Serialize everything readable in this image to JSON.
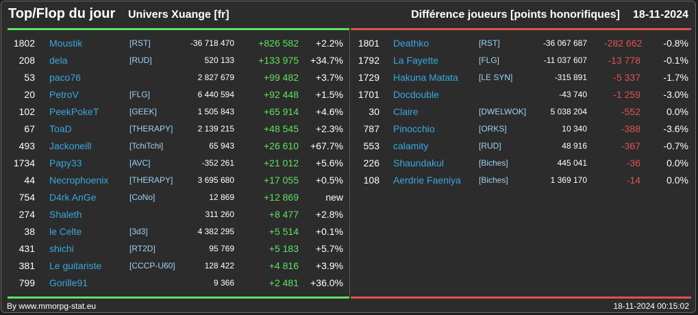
{
  "header": {
    "title": "Top/Flop du jour",
    "universe": "Univers Xuange [fr]",
    "metric": "Différence joueurs [points honorifiques]",
    "date": "18-11-2024"
  },
  "colors": {
    "positive": "#5fe25f",
    "negative": "#e0524d",
    "name": "#39a8e0"
  },
  "top": [
    {
      "rank": "1802",
      "name": "Moustik",
      "guild": "[RST]",
      "total": "-36 718 470",
      "diff": "+826 582",
      "pct": "+2.2%"
    },
    {
      "rank": "208",
      "name": "dela",
      "guild": "[RUD]",
      "total": "520 133",
      "diff": "+133 975",
      "pct": "+34.7%"
    },
    {
      "rank": "53",
      "name": "paco76",
      "guild": "",
      "total": "2 827 679",
      "diff": "+99 482",
      "pct": "+3.7%"
    },
    {
      "rank": "20",
      "name": "PetroV",
      "guild": "[FLG]",
      "total": "6 440 594",
      "diff": "+92 448",
      "pct": "+1.5%"
    },
    {
      "rank": "102",
      "name": "PeekPokeT",
      "guild": "[GEEK]",
      "total": "1 505 843",
      "diff": "+65 914",
      "pct": "+4.6%"
    },
    {
      "rank": "67",
      "name": "ToaD",
      "guild": "[THERAPY]",
      "total": "2 139 215",
      "diff": "+48 545",
      "pct": "+2.3%"
    },
    {
      "rank": "493",
      "name": "Jackoneill",
      "guild": "[TchiTchi]",
      "total": "65 943",
      "diff": "+26 610",
      "pct": "+67.7%"
    },
    {
      "rank": "1734",
      "name": "Papy33",
      "guild": "[AVC]",
      "total": "-352 261",
      "diff": "+21 012",
      "pct": "+5.6%"
    },
    {
      "rank": "44",
      "name": "Necrophoenix",
      "guild": "[THERAPY]",
      "total": "3 695 680",
      "diff": "+17 055",
      "pct": "+0.5%"
    },
    {
      "rank": "754",
      "name": "D4rk AnGe",
      "guild": "[CoNo]",
      "total": "12 869",
      "diff": "+12 869",
      "pct": "new"
    },
    {
      "rank": "274",
      "name": "Shaleth",
      "guild": "",
      "total": "311 260",
      "diff": "+8 477",
      "pct": "+2.8%"
    },
    {
      "rank": "38",
      "name": "le Celte",
      "guild": "[3d3]",
      "total": "4 382 295",
      "diff": "+5 514",
      "pct": "+0.1%"
    },
    {
      "rank": "431",
      "name": "shichi",
      "guild": "[RT2D]",
      "total": "95 769",
      "diff": "+5 183",
      "pct": "+5.7%"
    },
    {
      "rank": "381",
      "name": "Le guitariste",
      "guild": "[CCCP-U60]",
      "total": "128 422",
      "diff": "+4 816",
      "pct": "+3.9%"
    },
    {
      "rank": "799",
      "name": "Gorille91",
      "guild": "",
      "total": "9 366",
      "diff": "+2 481",
      "pct": "+36.0%"
    }
  ],
  "flop": [
    {
      "rank": "1801",
      "name": "Deathko",
      "guild": "[RST]",
      "total": "-36 067 687",
      "diff": "-282 662",
      "pct": "-0.8%"
    },
    {
      "rank": "1792",
      "name": "La Fayette",
      "guild": "[FLG]",
      "total": "-11 037 607",
      "diff": "-13 778",
      "pct": "-0.1%"
    },
    {
      "rank": "1729",
      "name": "Hakuna Matata",
      "guild": "[LE SYN]",
      "total": "-315 891",
      "diff": "-5 337",
      "pct": "-1.7%"
    },
    {
      "rank": "1701",
      "name": "Docdouble",
      "guild": "",
      "total": "-43 740",
      "diff": "-1 259",
      "pct": "-3.0%"
    },
    {
      "rank": "30",
      "name": "Claire",
      "guild": "[DWELWOK]",
      "total": "5 038 204",
      "diff": "-552",
      "pct": "0.0%"
    },
    {
      "rank": "787",
      "name": "Pinocchio",
      "guild": "[ORKS]",
      "total": "10 340",
      "diff": "-388",
      "pct": "-3.6%"
    },
    {
      "rank": "553",
      "name": "calamity",
      "guild": "[RUD]",
      "total": "48 916",
      "diff": "-367",
      "pct": "-0.7%"
    },
    {
      "rank": "226",
      "name": "Shaundakul",
      "guild": "[Biches]",
      "total": "445 041",
      "diff": "-36",
      "pct": "0.0%"
    },
    {
      "rank": "108",
      "name": "Aerdrie Faeniya",
      "guild": "[Biches]",
      "total": "1 369 170",
      "diff": "-14",
      "pct": "0.0%"
    }
  ],
  "footer": {
    "source": "By www.mmorpg-stat.eu",
    "timestamp": "18-11-2024 00:15:02"
  }
}
